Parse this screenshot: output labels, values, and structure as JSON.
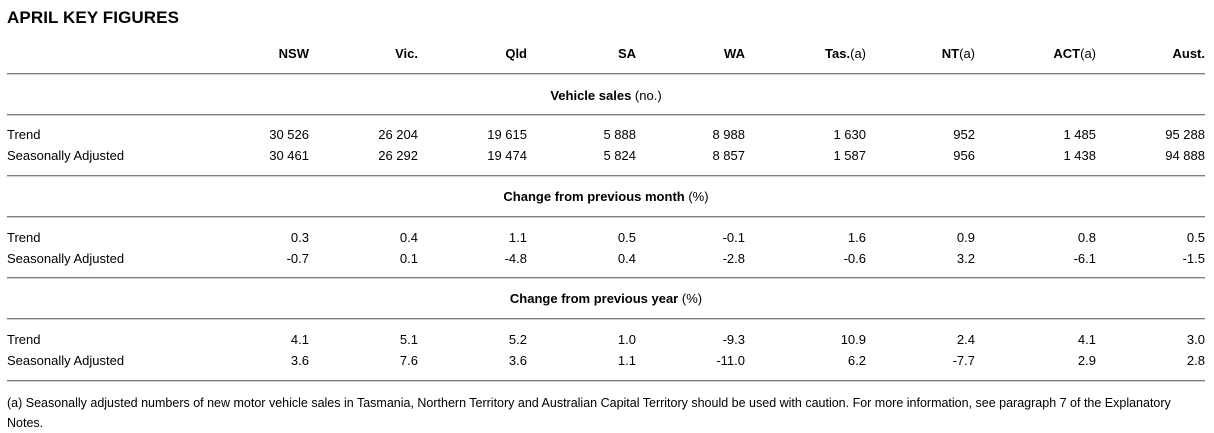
{
  "title": "APRIL KEY FIGURES",
  "columns": [
    {
      "name": "NSW",
      "unit": ""
    },
    {
      "name": "Vic.",
      "unit": ""
    },
    {
      "name": "Qld",
      "unit": ""
    },
    {
      "name": "SA",
      "unit": ""
    },
    {
      "name": "WA",
      "unit": ""
    },
    {
      "name": "Tas.",
      "unit": "(a)"
    },
    {
      "name": "NT",
      "unit": "(a)"
    },
    {
      "name": "ACT",
      "unit": "(a)"
    },
    {
      "name": "Aust.",
      "unit": ""
    }
  ],
  "sections": [
    {
      "title": "Vehicle sales",
      "unit": "(no.)",
      "rows": [
        {
          "label": "Trend",
          "values": [
            "30 526",
            "26 204",
            "19 615",
            "5 888",
            "8 988",
            "1 630",
            "952",
            "1 485",
            "95 288"
          ]
        },
        {
          "label": "Seasonally Adjusted",
          "values": [
            "30 461",
            "26 292",
            "19 474",
            "5 824",
            "8 857",
            "1 587",
            "956",
            "1 438",
            "94 888"
          ]
        }
      ]
    },
    {
      "title": "Change from previous month",
      "unit": "(%)",
      "rows": [
        {
          "label": "Trend",
          "values": [
            "0.3",
            "0.4",
            "1.1",
            "0.5",
            "-0.1",
            "1.6",
            "0.9",
            "0.8",
            "0.5"
          ]
        },
        {
          "label": "Seasonally Adjusted",
          "values": [
            "-0.7",
            "0.1",
            "-4.8",
            "0.4",
            "-2.8",
            "-0.6",
            "3.2",
            "-6.1",
            "-1.5"
          ]
        }
      ]
    },
    {
      "title": "Change from previous year",
      "unit": "(%)",
      "rows": [
        {
          "label": "Trend",
          "values": [
            "4.1",
            "5.1",
            "5.2",
            "1.0",
            "-9.3",
            "10.9",
            "2.4",
            "4.1",
            "3.0"
          ]
        },
        {
          "label": "Seasonally Adjusted",
          "values": [
            "3.6",
            "7.6",
            "3.6",
            "1.1",
            "-11.0",
            "6.2",
            "-7.7",
            "2.9",
            "2.8"
          ]
        }
      ]
    }
  ],
  "footnote": "(a) Seasonally adjusted numbers of new motor vehicle sales in Tasmania, Northern Territory and Australian Capital Territory should be used with caution. For more information, see paragraph 7 of the Explanatory Notes."
}
